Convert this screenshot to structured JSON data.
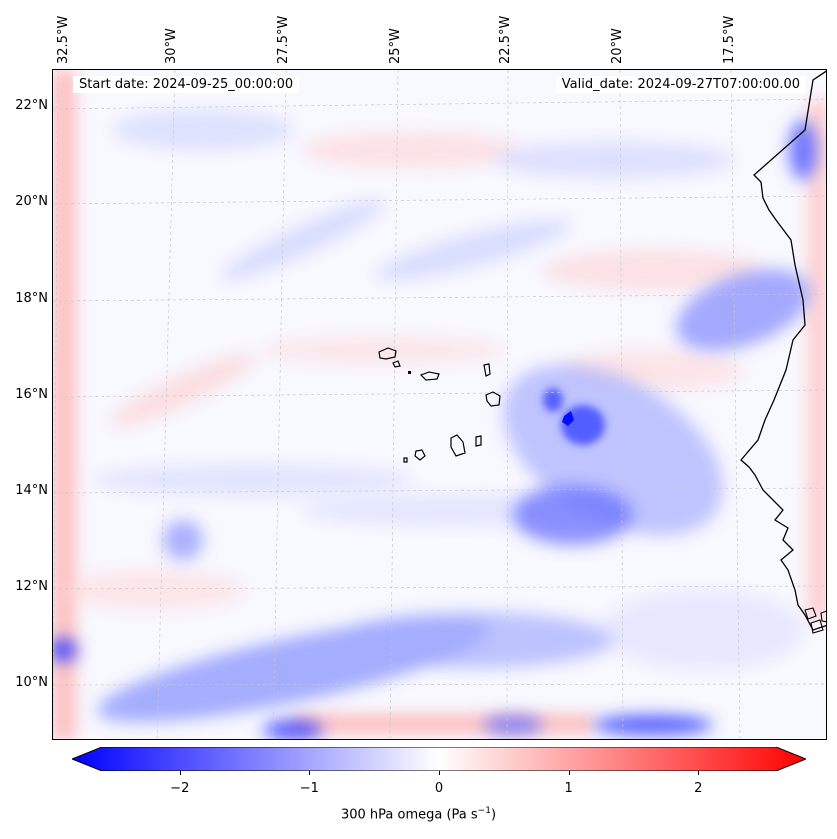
{
  "map": {
    "start_date": "Start date: 2024-09-25_00:00:00",
    "valid_date": "Valid_date: 2024-09-27T07:00:00.00",
    "longitude_labels": [
      "32.5°W",
      "30°W",
      "27.5°W",
      "25°W",
      "22.5°W",
      "20°W",
      "17.5°W"
    ],
    "latitude_labels": [
      "22°N",
      "20°N",
      "18°N",
      "16°N",
      "14°N",
      "12°N",
      "10°N"
    ],
    "field_colors": {
      "negative": "#0000ff",
      "neutral": "#ffffff",
      "positive": "#ff0000"
    }
  },
  "colorbar": {
    "ticks": [
      "−2",
      "−1",
      "0",
      "1",
      "2"
    ],
    "tick_values": [
      -2,
      -1,
      0,
      1,
      2
    ],
    "range": [
      -2.6,
      2.6
    ],
    "label_main": "300 hPa omega (Pa s",
    "label_sup": "−1",
    "label_end": ")"
  }
}
